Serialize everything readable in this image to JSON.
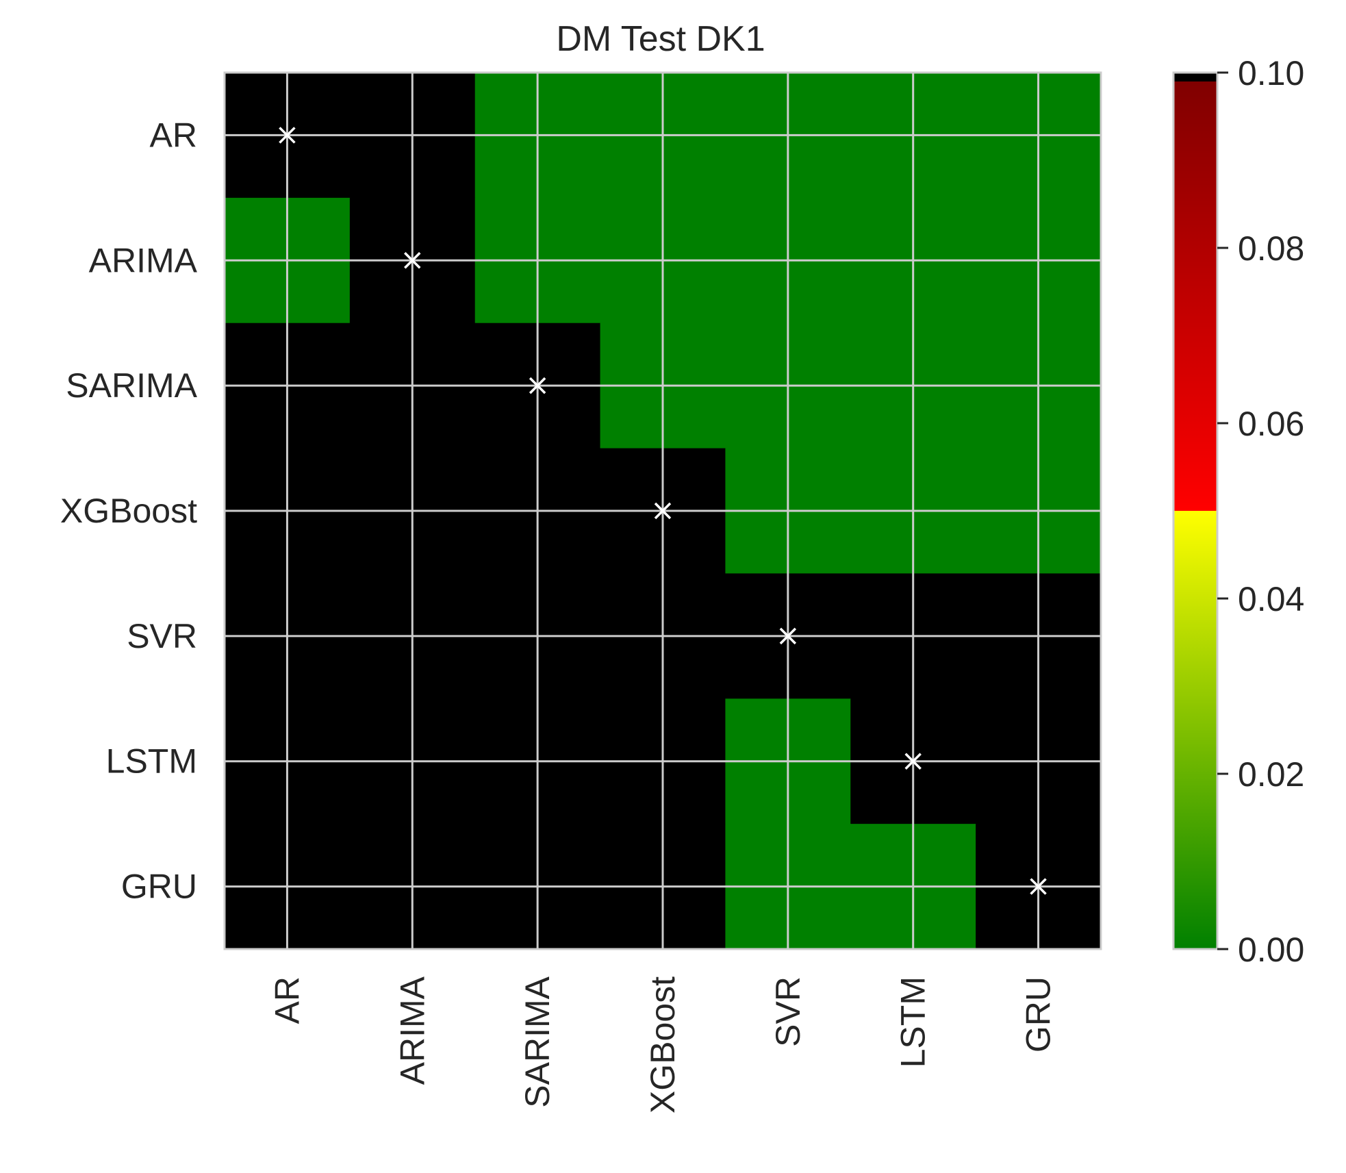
{
  "chart_data": {
    "type": "heatmap",
    "title": "DM Test DK1",
    "xlabel": "",
    "ylabel": "",
    "rows": [
      "AR",
      "ARIMA",
      "SARIMA",
      "XGBoost",
      "SVR",
      "LSTM",
      "GRU"
    ],
    "cols": [
      "AR",
      "ARIMA",
      "SARIMA",
      "XGBoost",
      "SVR",
      "LSTM",
      "GRU"
    ],
    "values": [
      [
        null,
        0.5,
        0.0,
        0.0,
        0.0,
        0.0,
        0.0
      ],
      [
        0.0,
        null,
        0.0,
        0.0,
        0.0,
        0.0,
        0.0
      ],
      [
        0.5,
        0.5,
        null,
        0.0,
        0.0,
        0.0,
        0.0
      ],
      [
        0.5,
        0.5,
        0.5,
        null,
        0.0,
        0.0,
        0.0
      ],
      [
        0.5,
        0.5,
        0.5,
        0.5,
        null,
        0.5,
        0.5
      ],
      [
        0.5,
        0.5,
        0.5,
        0.5,
        0.0,
        null,
        0.5
      ],
      [
        0.5,
        0.5,
        0.5,
        0.5,
        0.0,
        0.0,
        null
      ]
    ],
    "diagonal_marker": "×",
    "colorbar": {
      "vmin": 0.0,
      "vmax": 0.1,
      "ticks": [
        "0.00",
        "0.02",
        "0.04",
        "0.06",
        "0.08",
        "0.10"
      ],
      "stops": [
        {
          "value": 0.0,
          "color": "#008000"
        },
        {
          "value": 0.05,
          "color": "#ffff00"
        },
        {
          "value": 0.05,
          "color": "#ff0000"
        },
        {
          "value": 0.099,
          "color": "#800000"
        },
        {
          "value": 0.099,
          "color": "#000000"
        },
        {
          "value": 0.1,
          "color": "#000000"
        }
      ],
      "over_color": "#000000"
    },
    "grid": true,
    "colors": {
      "significant": "#008000",
      "not_significant": "#000000",
      "grid": "#cccccc",
      "diagonal_marker": "#ffffff"
    }
  }
}
